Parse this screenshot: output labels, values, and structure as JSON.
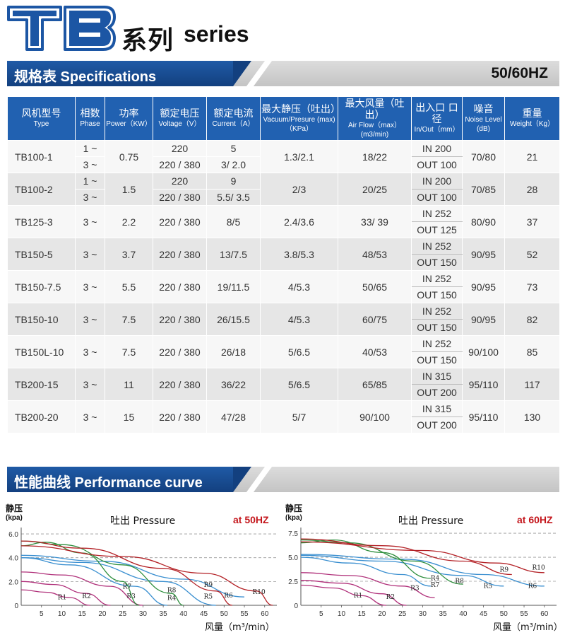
{
  "header": {
    "logo_text": "TB",
    "series_zh": "系列",
    "series_en": "series"
  },
  "specs_section": {
    "title": "规格表 Specifications",
    "hz": "50/60HZ"
  },
  "table": {
    "columns": [
      {
        "zh": "风机型号",
        "en": "Type"
      },
      {
        "zh": "相数",
        "en": "Phase"
      },
      {
        "zh": "功率",
        "en": "Power（KW）"
      },
      {
        "zh": "额定电压",
        "en": "Voltage（V）"
      },
      {
        "zh": "额定电流",
        "en": "Current（A）"
      },
      {
        "zh": "最大静压（吐出）",
        "en": "Vacuum/Presure (max)（KPa）"
      },
      {
        "zh": "最大风量（吐出）",
        "en": "Air Flow（max）(m3/min)"
      },
      {
        "zh": "出入口 口径",
        "en": "In/Out（mm）"
      },
      {
        "zh": "噪音",
        "en": "Noise Level (dB)"
      },
      {
        "zh": "重量",
        "en": "Weight（Kg）"
      }
    ],
    "rows": [
      {
        "type": "TB100-1",
        "phase": [
          "1 ~",
          "3 ~"
        ],
        "power": "0.75",
        "voltage": [
          "220",
          "220 / 380"
        ],
        "current": [
          "5",
          "3/ 2.0"
        ],
        "pressure": "1.3/2.1",
        "flow": "18/22",
        "in": "IN 200",
        "out": "OUT 100",
        "noise": "70/80",
        "weight": "21"
      },
      {
        "type": "TB100-2",
        "phase": [
          "1 ~",
          "3 ~"
        ],
        "power": "1.5",
        "voltage": [
          "220",
          "220 / 380"
        ],
        "current": [
          "9",
          "5.5/ 3.5"
        ],
        "pressure": "2/3",
        "flow": "20/25",
        "in": "IN 200",
        "out": "OUT 100",
        "noise": "70/85",
        "weight": "28"
      },
      {
        "type": "TB125-3",
        "phase": [
          "3 ~"
        ],
        "power": "2.2",
        "voltage": [
          "220 / 380"
        ],
        "current": [
          "8/5"
        ],
        "pressure": "2.4/3.6",
        "flow": "33/ 39",
        "in": "IN 252",
        "out": "OUT 125",
        "noise": "80/90",
        "weight": "37"
      },
      {
        "type": "TB150-5",
        "phase": [
          "3 ~"
        ],
        "power": "3.7",
        "voltage": [
          "220 / 380"
        ],
        "current": [
          "13/7.5"
        ],
        "pressure": "3.8/5.3",
        "flow": "48/53",
        "in": "IN 252",
        "out": "OUT 150",
        "noise": "90/95",
        "weight": "52"
      },
      {
        "type": "TB150-7.5",
        "phase": [
          "3 ~"
        ],
        "power": "5.5",
        "voltage": [
          "220 / 380"
        ],
        "current": [
          "19/11.5"
        ],
        "pressure": "4/5.3",
        "flow": "50/65",
        "in": "IN 252",
        "out": "OUT 150",
        "noise": "90/95",
        "weight": "73"
      },
      {
        "type": "TB150-10",
        "phase": [
          "3 ~"
        ],
        "power": "7.5",
        "voltage": [
          "220 / 380"
        ],
        "current": [
          "26/15.5"
        ],
        "pressure": "4/5.3",
        "flow": "60/75",
        "in": "IN 252",
        "out": "OUT 150",
        "noise": "90/95",
        "weight": "82"
      },
      {
        "type": "TB150L-10",
        "phase": [
          "3 ~"
        ],
        "power": "7.5",
        "voltage": [
          "220 / 380"
        ],
        "current": [
          "26/18"
        ],
        "pressure": "5/6.5",
        "flow": "40/53",
        "in": "IN 252",
        "out": "OUT 150",
        "noise": "90/100",
        "weight": "85"
      },
      {
        "type": "TB200-15",
        "phase": [
          "3 ~"
        ],
        "power": "11",
        "voltage": [
          "220 / 380"
        ],
        "current": [
          "36/22"
        ],
        "pressure": "5/6.5",
        "flow": "65/85",
        "in": "IN 315",
        "out": "OUT 200",
        "noise": "95/110",
        "weight": "117"
      },
      {
        "type": "TB200-20",
        "phase": [
          "3 ~"
        ],
        "power": "15",
        "voltage": [
          "220 / 380"
        ],
        "current": [
          "47/28"
        ],
        "pressure": "5/7",
        "flow": "90/100",
        "in": "IN 315",
        "out": "OUT 200",
        "noise": "95/110",
        "weight": "130"
      }
    ]
  },
  "perf_section": {
    "title": "性能曲线 Performance curve"
  },
  "chart_data": [
    {
      "type": "line",
      "title": "吐出 Pressure",
      "frequency": "at 50HZ",
      "ylabel": "静压",
      "yunit": "(kpa)",
      "xlabel": "风量（m³/min）",
      "xticks": [
        5,
        10,
        15,
        20,
        25,
        30,
        35,
        40,
        45,
        50,
        55,
        60
      ],
      "yticks": [
        0,
        2.0,
        4.0,
        6.0
      ],
      "xlim": [
        0,
        63
      ],
      "ylim": [
        0,
        6.3
      ],
      "series": [
        {
          "name": "R1",
          "color": "#b0307a",
          "points": [
            [
              0,
              1.3
            ],
            [
              6,
              1.1
            ],
            [
              12,
              0.65
            ],
            [
              17,
              0
            ]
          ],
          "label_at": [
            9,
            0.5
          ]
        },
        {
          "name": "R2",
          "color": "#b0307a",
          "points": [
            [
              0,
              2.0
            ],
            [
              8,
              1.75
            ],
            [
              16,
              1.0
            ],
            [
              22,
              0
            ]
          ],
          "label_at": [
            15,
            0.6
          ]
        },
        {
          "name": "R3",
          "color": "#b0307a",
          "points": [
            [
              0,
              2.8
            ],
            [
              10,
              2.55
            ],
            [
              22,
              1.6
            ],
            [
              30,
              0
            ]
          ],
          "label_at": [
            26,
            0.6
          ]
        },
        {
          "name": "R4",
          "color": "#3a8fd0",
          "points": [
            [
              0,
              4.0
            ],
            [
              12,
              3.4
            ],
            [
              28,
              1.6
            ],
            [
              36,
              0
            ]
          ],
          "label_at": [
            36,
            0.45
          ]
        },
        {
          "name": "R5",
          "color": "#3a8fd0",
          "points": [
            [
              0,
              4.0
            ],
            [
              15,
              3.6
            ],
            [
              35,
              2.0
            ],
            [
              48,
              0
            ]
          ],
          "label_at": [
            45,
            0.55
          ]
        },
        {
          "name": "R6",
          "color": "#3a8fd0",
          "points": [
            [
              0,
              4.2
            ],
            [
              20,
              3.7
            ],
            [
              40,
              2.2
            ],
            [
              55,
              0.7
            ]
          ],
          "label_at": [
            50,
            0.65
          ]
        },
        {
          "name": "R7",
          "color": "#2f8f3e",
          "points": [
            [
              0,
              5.0
            ],
            [
              6,
              5.3
            ],
            [
              15,
              4.4
            ],
            [
              25,
              2.0
            ],
            [
              29,
              0
            ]
          ],
          "label_at": [
            25,
            1.4
          ]
        },
        {
          "name": "R8",
          "color": "#2f8f3e",
          "points": [
            [
              0,
              5.4
            ],
            [
              10,
              5.1
            ],
            [
              25,
              3.4
            ],
            [
              37,
              1.0
            ],
            [
              40,
              0
            ]
          ],
          "label_at": [
            36,
            1.1
          ]
        },
        {
          "name": "R9",
          "color": "#b32025",
          "points": [
            [
              0,
              5.4
            ],
            [
              15,
              4.8
            ],
            [
              35,
              3.1
            ],
            [
              48,
              1.2
            ],
            [
              52,
              0
            ]
          ],
          "label_at": [
            45,
            1.55
          ]
        },
        {
          "name": "R10",
          "color": "#b32025",
          "points": [
            [
              0,
              5.0
            ],
            [
              25,
              4.1
            ],
            [
              45,
              2.7
            ],
            [
              58,
              1.2
            ],
            [
              62,
              0
            ]
          ],
          "label_at": [
            57,
            0.95
          ]
        }
      ]
    },
    {
      "type": "line",
      "title": "吐出 Pressure",
      "frequency": "at 60HZ",
      "ylabel": "静压",
      "yunit": "(kpa)",
      "xlabel": "风量（m³/min）",
      "xticks": [
        5,
        10,
        15,
        20,
        25,
        30,
        35,
        40,
        45,
        50,
        55,
        60
      ],
      "yticks": [
        0,
        2.5,
        5.0,
        7.5
      ],
      "xlim": [
        0,
        63
      ],
      "ylim": [
        0,
        7.8
      ],
      "series": [
        {
          "name": "R1",
          "color": "#b0307a",
          "points": [
            [
              0,
              2.1
            ],
            [
              8,
              1.8
            ],
            [
              15,
              1.0
            ],
            [
              21,
              0
            ]
          ],
          "label_at": [
            13,
            0.8
          ]
        },
        {
          "name": "R2",
          "color": "#b0307a",
          "points": [
            [
              0,
              2.6
            ],
            [
              10,
              2.3
            ],
            [
              20,
              1.2
            ],
            [
              26,
              0
            ]
          ],
          "label_at": [
            21,
            0.65
          ]
        },
        {
          "name": "R3",
          "color": "#b0307a",
          "points": [
            [
              0,
              3.4
            ],
            [
              12,
              3.1
            ],
            [
              25,
              2.0
            ],
            [
              33,
              0.8
            ]
          ],
          "label_at": [
            27,
            1.6
          ]
        },
        {
          "name": "R4",
          "color": "#3a8fd0",
          "points": [
            [
              0,
              5.0
            ],
            [
              12,
              4.4
            ],
            [
              25,
              3.2
            ],
            [
              32,
              2.0
            ]
          ],
          "label_at": [
            32,
            2.6
          ]
        },
        {
          "name": "R5",
          "color": "#3a8fd0",
          "points": [
            [
              0,
              5.2
            ],
            [
              20,
              4.6
            ],
            [
              40,
              3.1
            ],
            [
              50,
              2.0
            ]
          ],
          "label_at": [
            45,
            1.8
          ]
        },
        {
          "name": "R6",
          "color": "#3a8fd0",
          "points": [
            [
              0,
              5.3
            ],
            [
              25,
              4.8
            ],
            [
              45,
              3.2
            ],
            [
              60,
              2.0
            ]
          ],
          "label_at": [
            56,
            1.8
          ]
        },
        {
          "name": "R7",
          "color": "#2f8f3e",
          "points": [
            [
              0,
              6.5
            ],
            [
              8,
              6.8
            ],
            [
              20,
              5.5
            ],
            [
              32,
              2.8
            ]
          ],
          "label_at": [
            32,
            1.9
          ]
        },
        {
          "name": "R8",
          "color": "#2f8f3e",
          "points": [
            [
              0,
              6.8
            ],
            [
              12,
              6.5
            ],
            [
              28,
              4.6
            ],
            [
              40,
              2.2
            ]
          ],
          "label_at": [
            38,
            2.3
          ]
        },
        {
          "name": "R9",
          "color": "#b32025",
          "points": [
            [
              0,
              6.9
            ],
            [
              20,
              6.2
            ],
            [
              40,
              4.6
            ],
            [
              52,
              3.2
            ]
          ],
          "label_at": [
            49,
            3.5
          ]
        },
        {
          "name": "R10",
          "color": "#b32025",
          "points": [
            [
              0,
              6.6
            ],
            [
              30,
              5.7
            ],
            [
              48,
              4.4
            ],
            [
              60,
              3.4
            ]
          ],
          "label_at": [
            57,
            3.7
          ]
        }
      ]
    }
  ]
}
